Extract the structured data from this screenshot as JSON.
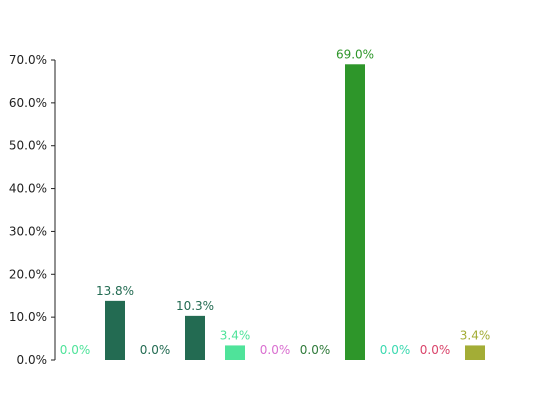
{
  "chart_data": {
    "type": "bar",
    "categories": [
      "",
      "",
      "",
      "",
      "",
      "",
      "",
      "",
      "",
      "",
      ""
    ],
    "values": [
      0.0,
      13.8,
      0.0,
      10.3,
      3.4,
      0.0,
      0.0,
      69.0,
      0.0,
      0.0,
      3.4
    ],
    "value_labels": [
      "0.0%",
      "13.8%",
      "0.0%",
      "10.3%",
      "3.4%",
      "0.0%",
      "0.0%",
      "69.0%",
      "0.0%",
      "0.0%",
      "3.4%"
    ],
    "colors": [
      "#4fe39a",
      "#236b52",
      "#236b52",
      "#236b52",
      "#4fe39a",
      "#d96fd0",
      "#2f7a3a",
      "#2e962a",
      "#3bd9b0",
      "#d9446a",
      "#a3ad36"
    ],
    "ylim": [
      0,
      70
    ],
    "yticks": [
      0,
      10,
      20,
      30,
      40,
      50,
      60,
      70
    ],
    "ytick_labels": [
      "0.0%",
      "10.0%",
      "20.0%",
      "30.0%",
      "40.0%",
      "50.0%",
      "60.0%",
      "70.0%"
    ],
    "title": "",
    "xlabel": "",
    "ylabel": "",
    "grid": false,
    "legend": "none"
  }
}
